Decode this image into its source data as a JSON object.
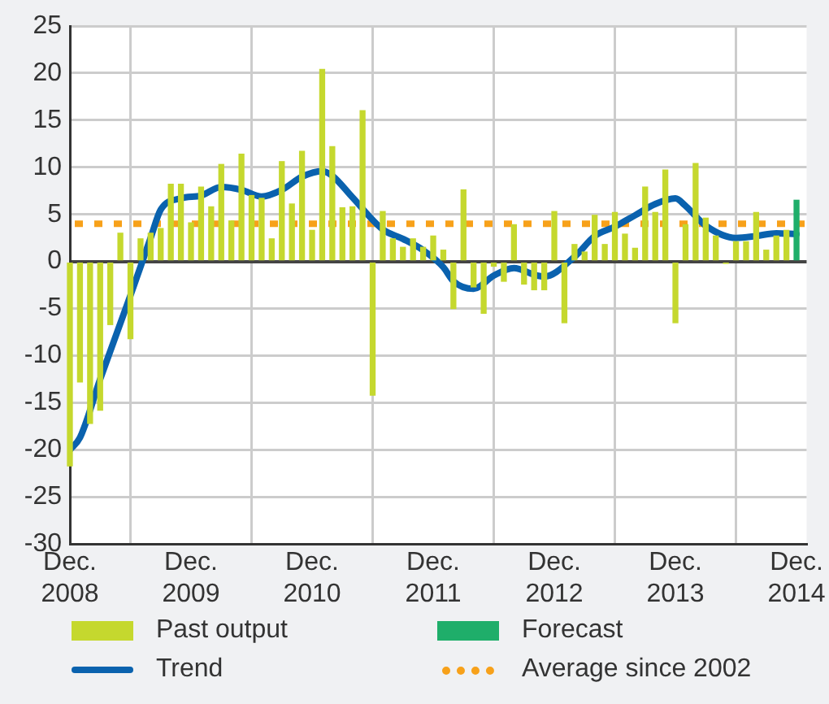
{
  "chart_data": {
    "type": "bar",
    "xlim": [
      "2008-12",
      "2015-01"
    ],
    "xticks": [
      {
        "value": "2008-12",
        "label": "Dec. 2008"
      },
      {
        "value": "2009-12",
        "label": "Dec. 2009"
      },
      {
        "value": "2010-12",
        "label": "Dec. 2010"
      },
      {
        "value": "2011-12",
        "label": "Dec. 2011"
      },
      {
        "value": "2012-12",
        "label": "Dec. 2012"
      },
      {
        "value": "2013-12",
        "label": "Dec. 2013"
      },
      {
        "value": "2014-12",
        "label": "Dec. 2014"
      }
    ],
    "ylim": [
      -30,
      25
    ],
    "yticks": [
      -30,
      -25,
      -20,
      -15,
      -10,
      -5,
      0,
      5,
      10,
      15,
      20,
      25
    ],
    "grid": true,
    "legend": "bottom",
    "x": [
      "2008-12",
      "2009-01",
      "2009-02",
      "2009-03",
      "2009-04",
      "2009-05",
      "2009-06",
      "2009-07",
      "2009-08",
      "2009-09",
      "2009-10",
      "2009-11",
      "2009-12",
      "2010-01",
      "2010-02",
      "2010-03",
      "2010-04",
      "2010-05",
      "2010-06",
      "2010-07",
      "2010-08",
      "2010-09",
      "2010-10",
      "2010-11",
      "2010-12",
      "2011-01",
      "2011-02",
      "2011-03",
      "2011-04",
      "2011-05",
      "2011-06",
      "2011-07",
      "2011-08",
      "2011-09",
      "2011-10",
      "2011-11",
      "2011-12",
      "2012-01",
      "2012-02",
      "2012-03",
      "2012-04",
      "2012-05",
      "2012-06",
      "2012-07",
      "2012-08",
      "2012-09",
      "2012-10",
      "2012-11",
      "2012-12",
      "2013-01",
      "2013-02",
      "2013-03",
      "2013-04",
      "2013-05",
      "2013-06",
      "2013-07",
      "2013-08",
      "2013-09",
      "2013-10",
      "2013-11",
      "2013-12",
      "2014-01",
      "2014-02",
      "2014-03",
      "2014-04",
      "2014-05",
      "2014-06",
      "2014-07",
      "2014-08",
      "2014-09",
      "2014-10",
      "2014-11"
    ],
    "series": [
      {
        "name": "Past output",
        "color": "#c5d82e",
        "values": [
          -21.7,
          -12.8,
          -17.2,
          -15.8,
          -6.7,
          3.0,
          -8.2,
          2.4,
          3.0,
          3.5,
          8.2,
          8.2,
          4.1,
          7.9,
          5.8,
          10.3,
          4.3,
          11.4,
          7.0,
          6.7,
          2.4,
          10.6,
          6.1,
          11.7,
          3.3,
          20.4,
          12.2,
          5.7,
          5.8,
          16.0,
          -14.2,
          5.3,
          2.4,
          1.5,
          2.4,
          1.5,
          2.7,
          1.2,
          -5.0,
          7.6,
          -2.7,
          -5.5,
          -0.5,
          -2.1,
          3.9,
          -2.4,
          -3.0,
          -3.0,
          5.3,
          -6.5,
          1.8,
          1.0,
          4.9,
          1.8,
          5.2,
          2.9,
          1.4,
          7.9,
          5.2,
          9.7,
          -6.5,
          3.9,
          10.4,
          4.6,
          2.7,
          -0.2,
          2.1,
          2.1,
          5.2,
          1.2,
          2.7,
          3.3
        ]
      },
      {
        "name": "Forecast",
        "color": "#1fae6a",
        "x": [
          "2014-12"
        ],
        "values": [
          6.5
        ]
      },
      {
        "name": "Trend",
        "type": "line",
        "color": "#0a62ae",
        "marker": "none",
        "line_style": "solid",
        "x": [
          "2008-12",
          "2009-01",
          "2009-03",
          "2009-06",
          "2009-08",
          "2009-09",
          "2009-11",
          "2010-01",
          "2010-03",
          "2010-05",
          "2010-07",
          "2010-09",
          "2010-11",
          "2011-01",
          "2011-02",
          "2011-04",
          "2011-07",
          "2011-09",
          "2011-11",
          "2012-01",
          "2012-02",
          "2012-04",
          "2012-06",
          "2012-08",
          "2012-10",
          "2012-11",
          "2013-02",
          "2013-04",
          "2013-06",
          "2013-08",
          "2013-10",
          "2013-12",
          "2014-01",
          "2014-03",
          "2014-06",
          "2014-08",
          "2014-10",
          "2014-12"
        ],
        "values": [
          -20.0,
          -18.7,
          -12.5,
          -3.6,
          2.5,
          5.5,
          6.7,
          7.0,
          7.9,
          7.6,
          6.9,
          7.6,
          9.0,
          9.6,
          9.1,
          6.8,
          3.4,
          2.4,
          1.2,
          -0.6,
          -2.1,
          -2.9,
          -1.5,
          -0.7,
          -1.4,
          -1.6,
          0.5,
          2.7,
          3.7,
          4.9,
          6.1,
          6.7,
          5.9,
          3.8,
          2.5,
          2.7,
          3.0,
          2.9
        ]
      }
    ],
    "ref_lines": [
      {
        "axis": "y",
        "value": 4,
        "label": "Average since 2002",
        "color": "#f7a11a",
        "line_style": "dotted"
      }
    ]
  }
}
